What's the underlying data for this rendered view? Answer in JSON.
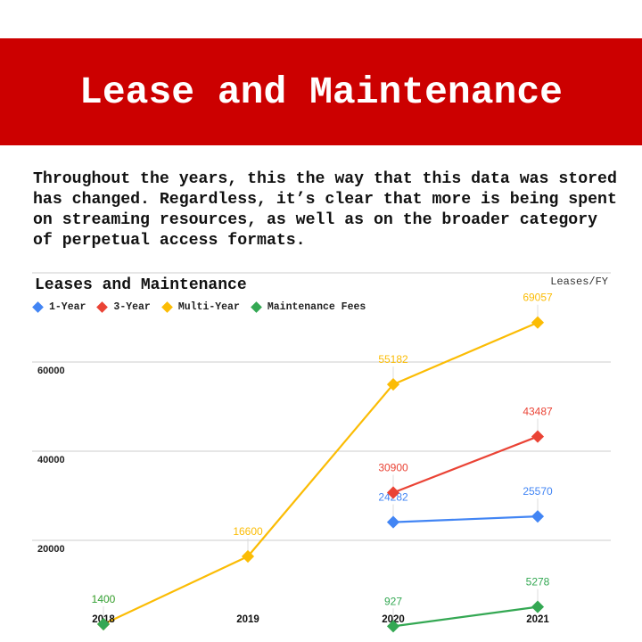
{
  "header": {
    "title": "Lease and Maintenance",
    "background": "#cc0000"
  },
  "description": "Throughout the years, this the way that this data was stored has changed. Regardless, it’s clear that more is being spent on streaming resources, as well as on the broader category of perpetual access formats.",
  "chart_data": {
    "type": "line",
    "title": "Leases and Maintenance",
    "xlabel": "",
    "ylabel": "Leases/FY",
    "categories": [
      "2018",
      "2019",
      "2020",
      "2021"
    ],
    "yticks": [
      20000,
      40000,
      60000
    ],
    "ylim": [
      0,
      70000
    ],
    "grid": true,
    "legend_position": "top",
    "series": [
      {
        "name": "1-Year",
        "color": "#4285f4",
        "values": [
          null,
          null,
          24282,
          25570
        ]
      },
      {
        "name": "3-Year",
        "color": "#ea4335",
        "values": [
          null,
          null,
          30900,
          43487
        ]
      },
      {
        "name": "Multi-Year",
        "color": "#fbbc04",
        "values": [
          1400,
          16600,
          55182,
          69057
        ]
      },
      {
        "name": "Maintenance Fees",
        "color": "#34a853",
        "values": [
          1400,
          null,
          927,
          5278
        ]
      }
    ]
  }
}
